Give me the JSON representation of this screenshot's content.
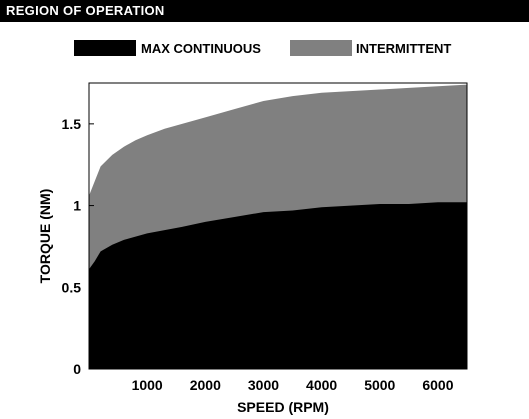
{
  "header": {
    "title": "REGION OF OPERATION"
  },
  "chart_data": {
    "type": "area",
    "title": "",
    "xlabel": "SPEED (RPM)",
    "ylabel": "TORQUE (NM)",
    "xlim": [
      0,
      6500
    ],
    "ylim": [
      0,
      1.75
    ],
    "x_ticks": [
      1000,
      2000,
      3000,
      4000,
      5000,
      6000
    ],
    "y_ticks": [
      0,
      0.5,
      1,
      1.5
    ],
    "x_tick_labels": [
      "1000",
      "2000",
      "3000",
      "4000",
      "5000",
      "6000"
    ],
    "y_tick_labels": [
      "0",
      "0.5",
      "1",
      "1.5"
    ],
    "grid": false,
    "legend_position": "top",
    "series": [
      {
        "name": "INTERMITTENT",
        "color": "#808080",
        "x": [
          0,
          100,
          200,
          400,
          600,
          800,
          1000,
          1300,
          1600,
          2000,
          2500,
          3000,
          3500,
          4000,
          4500,
          5000,
          5500,
          6000,
          6500
        ],
        "values": [
          1.06,
          1.15,
          1.24,
          1.31,
          1.36,
          1.4,
          1.43,
          1.47,
          1.5,
          1.54,
          1.59,
          1.64,
          1.67,
          1.69,
          1.7,
          1.71,
          1.72,
          1.73,
          1.74
        ]
      },
      {
        "name": "MAX CONTINUOUS",
        "color": "#000000",
        "x": [
          0,
          100,
          200,
          400,
          600,
          800,
          1000,
          1300,
          1600,
          2000,
          2500,
          3000,
          3500,
          4000,
          4500,
          5000,
          5500,
          6000,
          6500
        ],
        "values": [
          0.61,
          0.66,
          0.72,
          0.76,
          0.79,
          0.81,
          0.83,
          0.85,
          0.87,
          0.9,
          0.93,
          0.96,
          0.97,
          0.99,
          1.0,
          1.01,
          1.01,
          1.02,
          1.02
        ]
      }
    ]
  }
}
